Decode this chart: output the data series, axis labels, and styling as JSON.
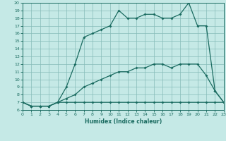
{
  "xlabel": "Humidex (Indice chaleur)",
  "bg_color": "#c5e9e6",
  "grid_color": "#87bcb9",
  "line_color": "#1a6b60",
  "xlim": [
    0,
    23
  ],
  "ylim": [
    6,
    20
  ],
  "xticks": [
    0,
    1,
    2,
    3,
    4,
    5,
    6,
    7,
    8,
    9,
    10,
    11,
    12,
    13,
    14,
    15,
    16,
    17,
    18,
    19,
    20,
    21,
    22,
    23
  ],
  "yticks": [
    6,
    7,
    8,
    9,
    10,
    11,
    12,
    13,
    14,
    15,
    16,
    17,
    18,
    19,
    20
  ],
  "line1_x": [
    0,
    1,
    2,
    3,
    4,
    5,
    6,
    7,
    8,
    9,
    10,
    11,
    12,
    13,
    14,
    15,
    16,
    17,
    18,
    19,
    20,
    21,
    22,
    23
  ],
  "line1_y": [
    7,
    6.5,
    6.5,
    6.5,
    7,
    7,
    7,
    7,
    7,
    7,
    7,
    7,
    7,
    7,
    7,
    7,
    7,
    7,
    7,
    7,
    7,
    7,
    7,
    7
  ],
  "line2_x": [
    0,
    1,
    2,
    3,
    4,
    5,
    6,
    7,
    8,
    9,
    10,
    11,
    12,
    13,
    14,
    15,
    16,
    17,
    18,
    19,
    20,
    21,
    22,
    23
  ],
  "line2_y": [
    7,
    6.5,
    6.5,
    6.5,
    7,
    7.5,
    8,
    9,
    9.5,
    10,
    10.5,
    11,
    11,
    11.5,
    11.5,
    12,
    12,
    11.5,
    12,
    12,
    12,
    10.5,
    8.5,
    7
  ],
  "line3_x": [
    0,
    1,
    2,
    3,
    4,
    5,
    6,
    7,
    8,
    9,
    10,
    11,
    12,
    13,
    14,
    15,
    16,
    17,
    18,
    19,
    20,
    21,
    22,
    23
  ],
  "line3_y": [
    7,
    6.5,
    6.5,
    6.5,
    7,
    9,
    12,
    15.5,
    16,
    16.5,
    17,
    19,
    18,
    18,
    18.5,
    18.5,
    18,
    18,
    18.5,
    20,
    17,
    17,
    8.5,
    7
  ],
  "marker_x3": [
    5,
    6,
    7,
    8,
    9,
    10,
    11,
    12,
    13,
    14,
    15,
    16,
    17,
    18,
    19,
    20,
    21,
    22
  ],
  "figw": 3.2,
  "figh": 2.0,
  "dpi": 100
}
